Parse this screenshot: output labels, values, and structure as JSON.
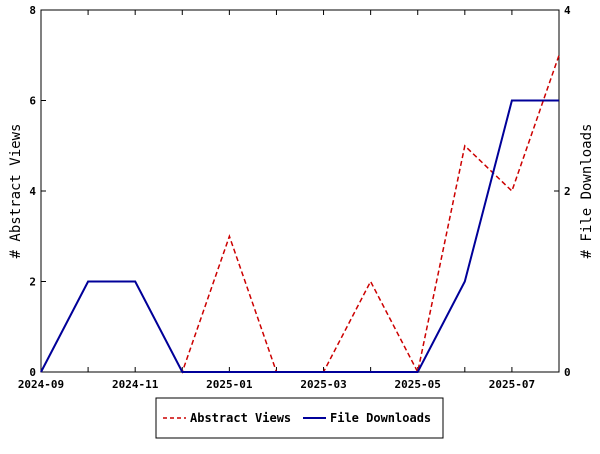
{
  "chart_data": {
    "type": "line",
    "title": "",
    "x": [
      "2024-09",
      "2024-10",
      "2024-11",
      "2024-12",
      "2025-01",
      "2025-02",
      "2025-03",
      "2025-04",
      "2025-05",
      "2025-06",
      "2025-07",
      "2025-08"
    ],
    "x_tick_labels": [
      "2024-09",
      "2024-11",
      "2025-01",
      "2025-03",
      "2025-05",
      "2025-07"
    ],
    "xlabel": "",
    "ylabel_left": "# Abstract Views",
    "ylabel_right": "# File Downloads",
    "ylim_left": [
      0,
      8
    ],
    "ylim_right": [
      0,
      4
    ],
    "yticks_left": [
      "0",
      "2",
      "4",
      "6",
      "8"
    ],
    "yticks_right": [
      "0",
      "2",
      "4"
    ],
    "grid": false,
    "legend_position": "bottom-center",
    "series": [
      {
        "name": "Abstract Views",
        "axis": "left",
        "color": "#cc0000",
        "style": "dashed",
        "values": [
          0,
          2,
          2,
          0,
          3,
          0,
          0,
          2,
          0,
          5,
          4,
          7
        ]
      },
      {
        "name": "File Downloads",
        "axis": "right",
        "color": "#000099",
        "style": "solid",
        "values": [
          0,
          1,
          1,
          0,
          0,
          0,
          0,
          0,
          0,
          1,
          3,
          3
        ]
      }
    ]
  }
}
